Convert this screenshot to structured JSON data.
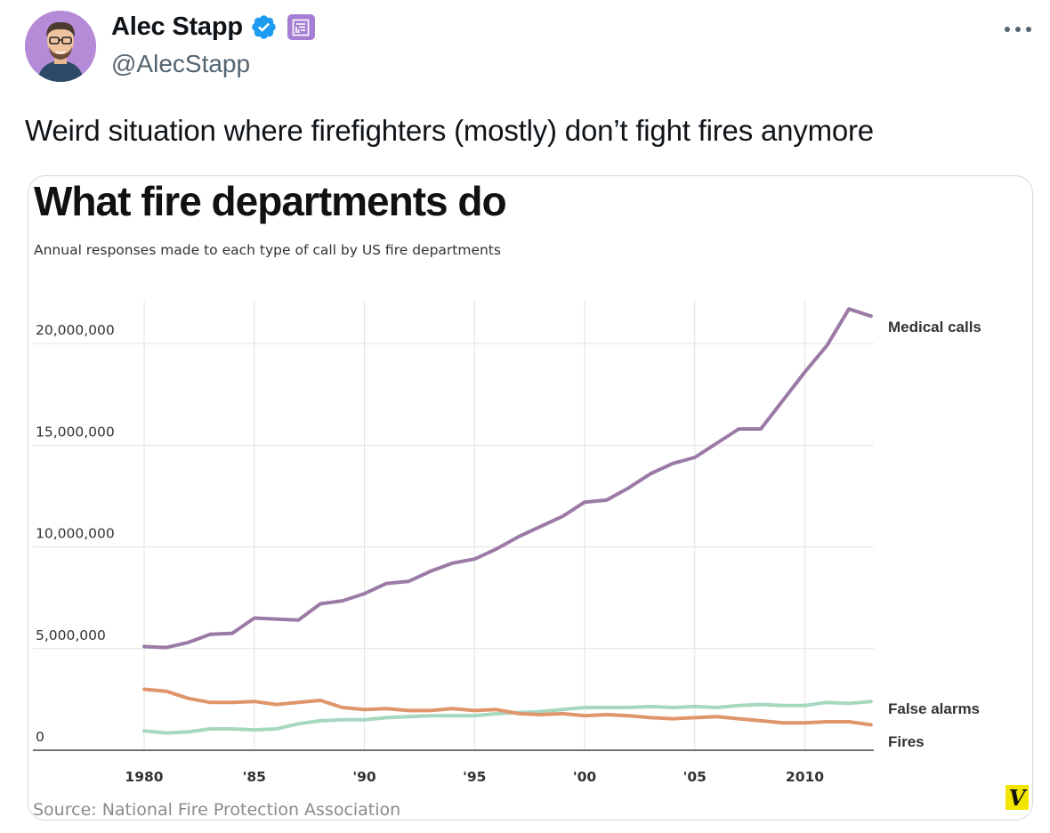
{
  "tweet": {
    "author_name": "Alec Stapp",
    "author_handle": "@AlecStapp",
    "text": "Weird situation where firefighters (mostly) don’t fight fires anymore"
  },
  "icons": {
    "avatar": "profile-avatar",
    "verified": "verified-badge-icon",
    "subscription": "subscription-badge-icon",
    "more": "more-options-icon",
    "publisher_logo": "vox-logo"
  },
  "colors": {
    "verified": "#1d9bf0",
    "subscription_badge": "#a67fd5",
    "medical": "#9b7aa6",
    "false_alarms": "#a6d8c0",
    "fires": "#e0956a",
    "logo_bg": "#f2e600"
  },
  "chart": {
    "title": "What fire departments do",
    "subtitle": "Annual responses made to each type of call by US fire departments",
    "source": "Source: National Fire Protection Association",
    "logo_text": "V"
  },
  "chart_data": {
    "type": "line",
    "title": "What fire departments do",
    "subtitle": "Annual responses made to each type of call by US fire departments",
    "xlabel": "",
    "ylabel": "",
    "xlim": [
      1980,
      2013
    ],
    "ylim": [
      0,
      22000000
    ],
    "x_ticks": [
      1980,
      1985,
      1990,
      1995,
      2000,
      2005,
      2010
    ],
    "x_tick_labels": [
      "1980",
      "'85",
      "'90",
      "'95",
      "'00",
      "'05",
      "2010"
    ],
    "y_ticks": [
      0,
      5000000,
      10000000,
      15000000,
      20000000
    ],
    "y_tick_labels": [
      "0",
      "5,000,000",
      "10,000,000",
      "15,000,000",
      "20,000,000"
    ],
    "grid": true,
    "x": [
      1980,
      1981,
      1982,
      1983,
      1984,
      1985,
      1986,
      1987,
      1988,
      1989,
      1990,
      1991,
      1992,
      1993,
      1994,
      1995,
      1996,
      1997,
      1998,
      1999,
      2000,
      2001,
      2002,
      2003,
      2004,
      2005,
      2006,
      2007,
      2008,
      2009,
      2010,
      2011,
      2012,
      2013
    ],
    "series": [
      {
        "name": "Medical calls",
        "color": "#9b7aa6",
        "values": [
          5100000,
          5050000,
          5300000,
          5700000,
          5750000,
          6500000,
          6450000,
          6400000,
          7200000,
          7350000,
          7700000,
          8200000,
          8300000,
          8800000,
          9200000,
          9400000,
          9900000,
          10500000,
          11000000,
          11500000,
          12200000,
          12300000,
          12900000,
          13600000,
          14100000,
          14400000,
          15100000,
          15800000,
          15800000,
          17200000,
          18600000,
          19900000,
          21700000,
          21350000
        ]
      },
      {
        "name": "False alarms",
        "color": "#a6d8c0",
        "values": [
          950000,
          850000,
          900000,
          1050000,
          1050000,
          1000000,
          1050000,
          1300000,
          1450000,
          1500000,
          1500000,
          1600000,
          1650000,
          1700000,
          1700000,
          1700000,
          1800000,
          1850000,
          1900000,
          2000000,
          2100000,
          2100000,
          2100000,
          2150000,
          2100000,
          2150000,
          2100000,
          2200000,
          2250000,
          2200000,
          2200000,
          2350000,
          2300000,
          2400000
        ]
      },
      {
        "name": "Fires",
        "color": "#e0956a",
        "values": [
          3000000,
          2900000,
          2550000,
          2350000,
          2350000,
          2400000,
          2250000,
          2350000,
          2450000,
          2100000,
          2000000,
          2050000,
          1950000,
          1950000,
          2050000,
          1950000,
          2000000,
          1800000,
          1750000,
          1800000,
          1700000,
          1750000,
          1700000,
          1600000,
          1550000,
          1600000,
          1650000,
          1550000,
          1450000,
          1350000,
          1350000,
          1400000,
          1400000,
          1250000
        ]
      }
    ]
  }
}
